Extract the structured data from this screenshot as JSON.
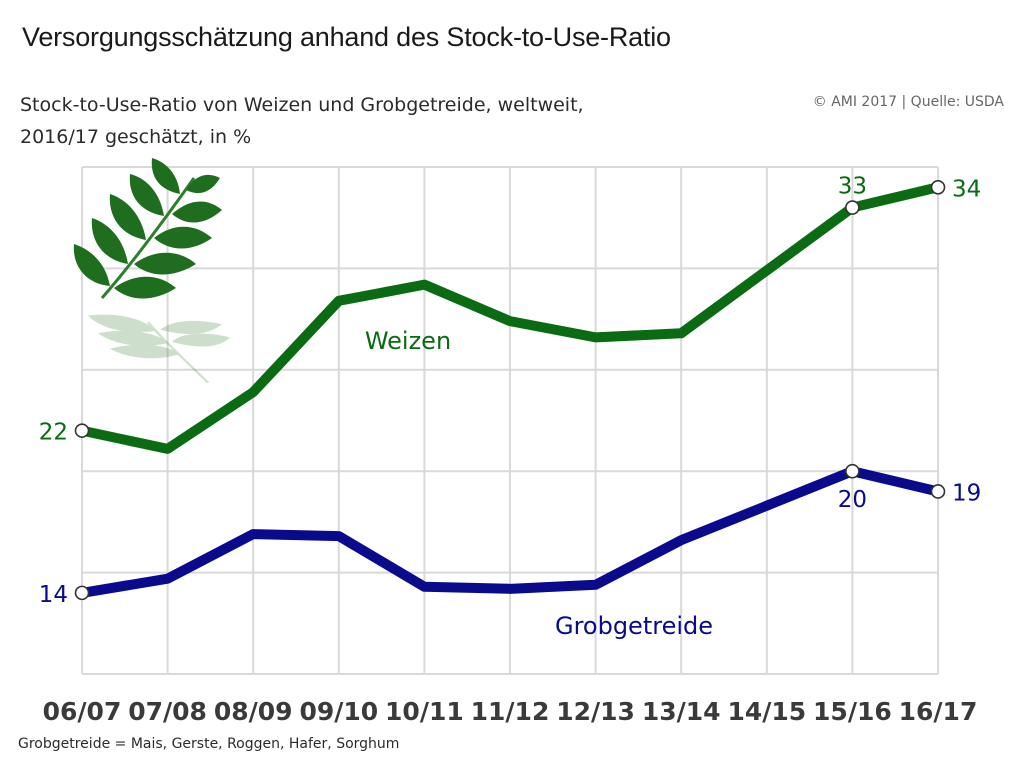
{
  "header": {
    "title": "Versorgungsschätzung anhand des Stock-to-Use-Ratio",
    "subtitle_line1": "Stock-to-Use-Ratio von Weizen und Grobgetreide, weltweit,",
    "subtitle_line2": "2016/17 geschätzt, in %",
    "copyright": "© AMI 2017 | Quelle: USDA"
  },
  "footnote": "Grobgetreide = Mais, Gerste, Roggen, Hafer, Sorghum",
  "colors": {
    "weizen": "#0a6b12",
    "grobgetreide": "#0a0a8c",
    "grid": "#d9d9d9",
    "tick_text": "#3a3a3a"
  },
  "chart_data": {
    "type": "line",
    "title": "Stock-to-Use-Ratio von Weizen und Grobgetreide, weltweit, 2016/17 geschätzt, in %",
    "xlabel": "",
    "ylabel": "%",
    "categories": [
      "06/07",
      "07/08",
      "08/09",
      "09/10",
      "10/11",
      "11/12",
      "12/13",
      "13/14",
      "14/15",
      "15/16",
      "16/17"
    ],
    "ylim": [
      10,
      35
    ],
    "grid": true,
    "series": [
      {
        "name": "Weizen",
        "color": "#0a6b12",
        "values": [
          22,
          21.1,
          23.9,
          28.4,
          29.2,
          27.4,
          26.6,
          26.8,
          29.9,
          33,
          34
        ],
        "labels": {
          "0": "22",
          "9": "33",
          "10": "34"
        },
        "label_pos": {
          "0": "left",
          "9": "above",
          "10": "right"
        },
        "series_label": "Weizen"
      },
      {
        "name": "Grobgetreide",
        "color": "#0a0a8c",
        "values": [
          14,
          14.7,
          16.9,
          16.8,
          14.3,
          14.2,
          14.4,
          16.6,
          18.3,
          20,
          19
        ],
        "labels": {
          "0": "14",
          "9": "20",
          "10": "19"
        },
        "label_pos": {
          "0": "left",
          "9": "below",
          "10": "right"
        },
        "series_label": "Grobgetreide"
      }
    ],
    "marked_points": [
      0,
      9,
      10
    ]
  }
}
